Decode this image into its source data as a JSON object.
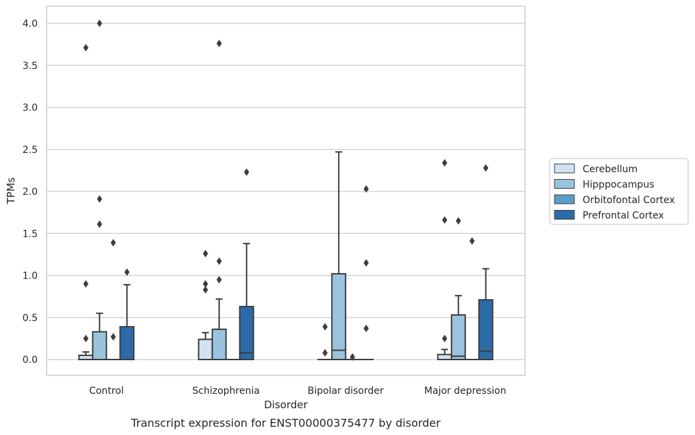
{
  "caption": "Transcript expression for ENST00000375477 by disorder",
  "chart_data": {
    "type": "box",
    "title": "",
    "xlabel": "Disorder",
    "ylabel": "TPMs",
    "ylim": [
      -0.2,
      4.2
    ],
    "yticks": [
      "0.0",
      "0.5",
      "1.0",
      "1.5",
      "2.0",
      "2.5",
      "3.0",
      "3.5",
      "4.0"
    ],
    "grid": "horizontal",
    "legend_position": "right",
    "categories": [
      "Control",
      "Schizophrenia",
      "Bipolar disorder",
      "Major depression"
    ],
    "series": [
      {
        "name": "Cerebellum",
        "color": "#d1e2f2",
        "boxes": [
          {
            "q1": 0.0,
            "median": 0.0,
            "q3": 0.05,
            "whisker_low": 0.0,
            "whisker_high": 0.09,
            "outliers": [
              0.25,
              0.9,
              3.71
            ]
          },
          {
            "q1": 0.0,
            "median": 0.0,
            "q3": 0.24,
            "whisker_low": 0.0,
            "whisker_high": 0.32,
            "outliers": [
              0.83,
              0.9,
              1.26
            ]
          },
          {
            "q1": 0.0,
            "median": 0.0,
            "q3": 0.0,
            "whisker_low": 0.0,
            "whisker_high": 0.0,
            "outliers": [
              0.08,
              0.39
            ]
          },
          {
            "q1": 0.0,
            "median": 0.0,
            "q3": 0.06,
            "whisker_low": 0.0,
            "whisker_high": 0.12,
            "outliers": [
              0.25,
              1.66,
              2.34
            ]
          }
        ]
      },
      {
        "name": "Hipppocampus",
        "color": "#9ac4de",
        "boxes": [
          {
            "q1": 0.0,
            "median": 0.0,
            "q3": 0.33,
            "whisker_low": 0.0,
            "whisker_high": 0.55,
            "outliers": [
              1.61,
              1.91,
              4.0
            ]
          },
          {
            "q1": 0.0,
            "median": 0.0,
            "q3": 0.36,
            "whisker_low": 0.0,
            "whisker_high": 0.72,
            "outliers": [
              0.95,
              1.17,
              3.76
            ]
          },
          {
            "q1": 0.0,
            "median": 0.11,
            "q3": 1.02,
            "whisker_low": 0.0,
            "whisker_high": 2.47,
            "outliers": []
          },
          {
            "q1": 0.0,
            "median": 0.04,
            "q3": 0.53,
            "whisker_low": 0.0,
            "whisker_high": 0.76,
            "outliers": [
              1.65
            ]
          }
        ]
      },
      {
        "name": "Orbitofontal Cortex",
        "color": "#5a9ec9",
        "boxes": [
          {
            "q1": 0.0,
            "median": 0.0,
            "q3": 0.0,
            "whisker_low": 0.0,
            "whisker_high": 0.0,
            "outliers": [
              0.27,
              1.39
            ]
          },
          {
            "q1": 0.0,
            "median": 0.0,
            "q3": 0.0,
            "whisker_low": 0.0,
            "whisker_high": 0.0,
            "outliers": []
          },
          {
            "q1": 0.0,
            "median": 0.0,
            "q3": 0.0,
            "whisker_low": 0.0,
            "whisker_high": 0.0,
            "outliers": [
              0.03
            ]
          },
          {
            "q1": 0.0,
            "median": 0.0,
            "q3": 0.0,
            "whisker_low": 0.0,
            "whisker_high": 0.0,
            "outliers": [
              1.41
            ]
          }
        ]
      },
      {
        "name": "Prefrontal Cortex",
        "color": "#2c6ba8",
        "boxes": [
          {
            "q1": 0.0,
            "median": 0.0,
            "q3": 0.39,
            "whisker_low": 0.0,
            "whisker_high": 0.89,
            "outliers": [
              1.04
            ]
          },
          {
            "q1": 0.0,
            "median": 0.08,
            "q3": 0.63,
            "whisker_low": 0.0,
            "whisker_high": 1.38,
            "outliers": [
              2.23
            ]
          },
          {
            "q1": 0.0,
            "median": 0.0,
            "q3": 0.0,
            "whisker_low": 0.0,
            "whisker_high": 0.0,
            "outliers": [
              0.37,
              1.15,
              2.03
            ]
          },
          {
            "q1": 0.0,
            "median": 0.1,
            "q3": 0.71,
            "whisker_low": 0.0,
            "whisker_high": 1.08,
            "outliers": [
              2.28
            ]
          }
        ]
      }
    ]
  }
}
